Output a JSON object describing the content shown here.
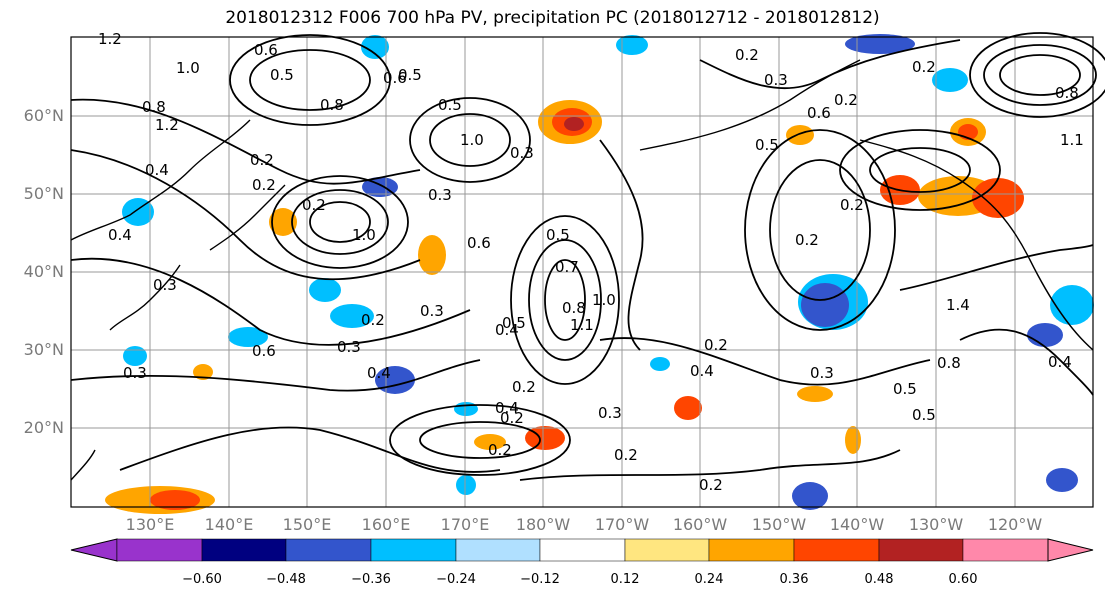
{
  "title": "2018012312 F006 700 hPa PV, precipitation PC (2018012712 - 2018012812)",
  "lat_labels": [
    "60°N",
    "50°N",
    "40°N",
    "30°N",
    "20°N"
  ],
  "lon_labels": [
    "130°E",
    "140°E",
    "150°E",
    "160°E",
    "170°E",
    "180°W",
    "170°W",
    "160°W",
    "150°W",
    "140°W",
    "130°W",
    "120°W"
  ],
  "colorbar": {
    "colors": [
      "#9933cc",
      "#000080",
      "#3355cc",
      "#00bfff",
      "#b0e0ff",
      "#ffffff",
      "#ffe680",
      "#ffa500",
      "#ff4500",
      "#b22222",
      "#ff88aa"
    ],
    "tick_labels": [
      "−0.60",
      "−0.48",
      "−0.36",
      "−0.24",
      "−0.12",
      "0.12",
      "0.24",
      "0.36",
      "0.48",
      "0.60"
    ]
  },
  "contour_labels": [
    "1.2",
    "0.6",
    "0.5",
    "1.0",
    "0.8",
    "0.6",
    "1.2",
    "0.4",
    "0.2",
    "0.4",
    "0.3",
    "0.5",
    "0.8",
    "1.0",
    "0.5",
    "0.3",
    "0.2",
    "0.2",
    "0.3",
    "0.6",
    "0.5",
    "1.0",
    "0.7",
    "0.8",
    "1.0",
    "1.1",
    "0.4",
    "0.3",
    "0.5",
    "0.2",
    "0.3",
    "0.6",
    "0.4",
    "0.3",
    "0.2",
    "0.2",
    "0.4",
    "0.2",
    "0.3",
    "0.2",
    "0.4",
    "0.2",
    "0.2",
    "0.5",
    "0.2",
    "0.2",
    "0.2",
    "0.3",
    "0.6",
    "0.5",
    "0.8",
    "0.5",
    "1.4",
    "0.4",
    "1.1",
    "0.8",
    "0.3",
    "0.2",
    "0.2"
  ]
}
